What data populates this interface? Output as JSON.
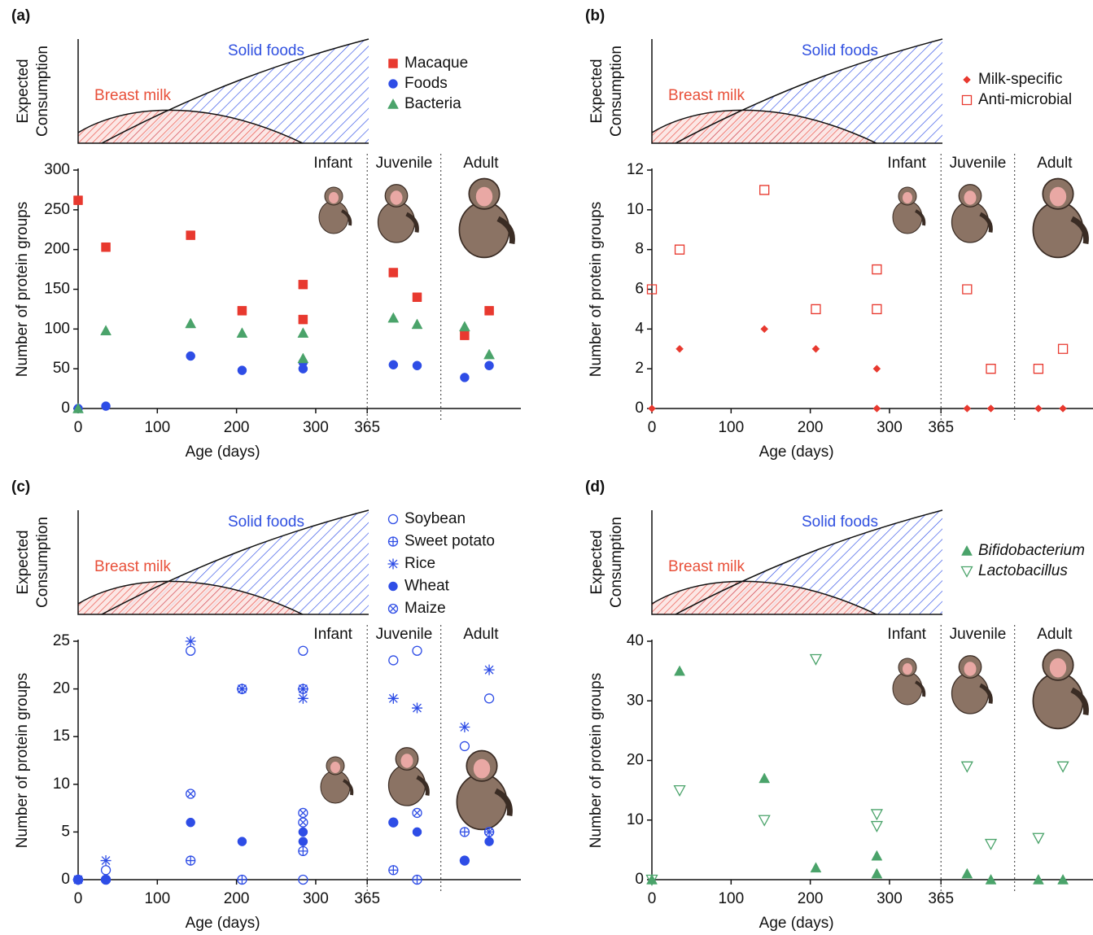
{
  "chart_data": [
    {
      "type": "scatter",
      "panel_label": "(a)",
      "schematic_ylabel": [
        "Expected",
        "Consumption"
      ],
      "breast_milk_label": "Breast milk",
      "solid_foods_label": "Solid foods",
      "regions": [
        "Infant",
        "Juvenile",
        "Adult"
      ],
      "region_dividers": [
        365,
        458
      ],
      "xlabel": "Age (days)",
      "ylabel": "Number of protein groups",
      "xlim": [
        0,
        559
      ],
      "xticks": [
        0,
        100,
        200,
        300,
        365
      ],
      "ylim": [
        0,
        300
      ],
      "yticks": [
        0,
        50,
        100,
        150,
        200,
        250,
        300
      ],
      "legend_italic": false,
      "series": [
        {
          "name": "Macaque",
          "color": "#e8392f",
          "marker": "square",
          "x": [
            0,
            35,
            142,
            207,
            284,
            284,
            398,
            428,
            488,
            519
          ],
          "values": [
            262,
            203,
            218,
            123,
            156,
            112,
            171,
            140,
            92,
            123
          ]
        },
        {
          "name": "Foods",
          "color": "#2e4de6",
          "marker": "circle",
          "x": [
            0,
            35,
            142,
            207,
            284,
            284,
            398,
            428,
            488,
            519
          ],
          "values": [
            0,
            3,
            66,
            48,
            58,
            50,
            55,
            54,
            39,
            54
          ]
        },
        {
          "name": "Bacteria",
          "color": "#4aa36a",
          "marker": "triangle",
          "x": [
            0,
            35,
            142,
            207,
            284,
            284,
            398,
            428,
            488,
            519
          ],
          "values": [
            0,
            98,
            107,
            95,
            95,
            63,
            114,
            106,
            103,
            68
          ]
        }
      ]
    },
    {
      "type": "scatter",
      "panel_label": "(b)",
      "schematic_ylabel": [
        "Expected",
        "Consumption"
      ],
      "breast_milk_label": "Breast milk",
      "solid_foods_label": "Solid foods",
      "regions": [
        "Infant",
        "Juvenile",
        "Adult"
      ],
      "region_dividers": [
        365,
        458
      ],
      "xlabel": "Age (days)",
      "ylabel": "Number of protein groups",
      "xlim": [
        0,
        559
      ],
      "xticks": [
        0,
        100,
        200,
        300,
        365
      ],
      "ylim": [
        0,
        12
      ],
      "yticks": [
        0,
        2,
        4,
        6,
        8,
        10,
        12
      ],
      "legend_italic": false,
      "series": [
        {
          "name": "Milk-specific",
          "color": "#e8392f",
          "marker": "diamond",
          "x": [
            0,
            35,
            142,
            207,
            284,
            284,
            398,
            428,
            488,
            519
          ],
          "values": [
            0,
            3,
            4,
            3,
            2,
            0,
            0,
            0,
            0,
            0
          ]
        },
        {
          "name": "Anti-microbial",
          "color": "#e8392f",
          "marker": "open-square",
          "x": [
            0,
            35,
            142,
            207,
            284,
            284,
            398,
            428,
            488,
            519
          ],
          "values": [
            6,
            8,
            11,
            5,
            7,
            5,
            6,
            2,
            2,
            3
          ]
        }
      ]
    },
    {
      "type": "scatter",
      "panel_label": "(c)",
      "schematic_ylabel": [
        "Expected",
        "Consumption"
      ],
      "breast_milk_label": "Breast milk",
      "solid_foods_label": "Solid foods",
      "regions": [
        "Infant",
        "Juvenile",
        "Adult"
      ],
      "region_dividers": [
        365,
        458
      ],
      "xlabel": "Age (days)",
      "ylabel": "Number of protein groups",
      "xlim": [
        0,
        559
      ],
      "xticks": [
        0,
        100,
        200,
        300,
        365
      ],
      "ylim": [
        0,
        25
      ],
      "yticks": [
        0,
        5,
        10,
        15,
        20,
        25
      ],
      "legend_italic": false,
      "series": [
        {
          "name": "Soybean",
          "color": "#2e4de6",
          "marker": "open-circle",
          "x": [
            0,
            35,
            142,
            207,
            284,
            284,
            398,
            428,
            488,
            519
          ],
          "values": [
            0,
            1,
            24,
            20,
            24,
            0,
            23,
            24,
            14,
            19
          ]
        },
        {
          "name": "Sweet potato",
          "color": "#2e4de6",
          "marker": "circle-plus",
          "x": [
            0,
            35,
            142,
            207,
            284,
            284,
            398,
            428,
            488,
            519
          ],
          "values": [
            0,
            0,
            2,
            0,
            3,
            20,
            1,
            0,
            5,
            5
          ]
        },
        {
          "name": "Rice",
          "color": "#2e4de6",
          "marker": "asterisk",
          "x": [
            0,
            35,
            142,
            207,
            284,
            284,
            398,
            428,
            488,
            519
          ],
          "values": [
            0,
            2,
            25,
            20,
            20,
            19,
            19,
            18,
            16,
            22
          ]
        },
        {
          "name": "Wheat",
          "color": "#2e4de6",
          "marker": "circle",
          "x": [
            0,
            35,
            142,
            207,
            284,
            284,
            398,
            428,
            488,
            519
          ],
          "values": [
            0,
            0,
            6,
            4,
            5,
            4,
            6,
            5,
            2,
            4
          ]
        },
        {
          "name": "Maize",
          "color": "#2e4de6",
          "marker": "circle-x",
          "x": [
            0,
            35,
            142,
            207,
            284,
            284,
            398,
            428,
            488,
            519
          ],
          "values": [
            0,
            0,
            9,
            20,
            7,
            6,
            6,
            7,
            2,
            5
          ]
        }
      ]
    },
    {
      "type": "scatter",
      "panel_label": "(d)",
      "schematic_ylabel": [
        "Expected",
        "Consumption"
      ],
      "breast_milk_label": "Breast milk",
      "solid_foods_label": "Solid foods",
      "regions": [
        "Infant",
        "Juvenile",
        "Adult"
      ],
      "region_dividers": [
        365,
        458
      ],
      "xlabel": "Age (days)",
      "ylabel": "Number of protein groups",
      "xlim": [
        0,
        559
      ],
      "xticks": [
        0,
        100,
        200,
        300,
        365
      ],
      "ylim": [
        0,
        40
      ],
      "yticks": [
        0,
        10,
        20,
        30,
        40
      ],
      "legend_italic": true,
      "series": [
        {
          "name": "Bifidobacterium",
          "color": "#4aa36a",
          "marker": "triangle",
          "x": [
            0,
            35,
            142,
            207,
            284,
            284,
            398,
            428,
            488,
            519
          ],
          "values": [
            0,
            35,
            17,
            2,
            4,
            1,
            1,
            0,
            0,
            0
          ]
        },
        {
          "name": "Lactobacillus",
          "color": "#4aa36a",
          "marker": "open-triangle-down",
          "x": [
            0,
            35,
            142,
            207,
            284,
            284,
            398,
            428,
            488,
            519
          ],
          "values": [
            0,
            15,
            10,
            37,
            11,
            9,
            19,
            6,
            7,
            19
          ]
        }
      ]
    }
  ]
}
